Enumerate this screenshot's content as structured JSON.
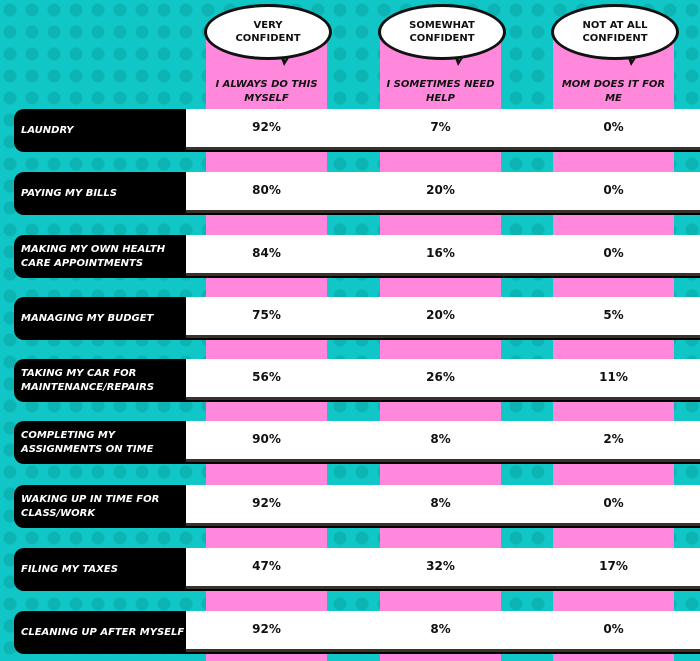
{
  "columns": [
    {
      "bubble": "VERY CONFIDENT",
      "caption": "I ALWAYS DO THIS MYSELF"
    },
    {
      "bubble": "SOMEWHAT CONFIDENT",
      "caption": "I SOMETIMES NEED HELP"
    },
    {
      "bubble": "NOT AT ALL CONFIDENT",
      "caption": "MOM DOES IT FOR ME"
    }
  ],
  "rows": [
    {
      "label": "LAUNDRY",
      "values": [
        "92%",
        "7%",
        "0%"
      ]
    },
    {
      "label": "PAYING MY BILLS",
      "values": [
        "80%",
        "20%",
        "0%"
      ]
    },
    {
      "label": "MAKING MY OWN HEALTH CARE APPOINTMENTS",
      "values": [
        "84%",
        "16%",
        "0%"
      ]
    },
    {
      "label": "MANAGING MY BUDGET",
      "values": [
        "75%",
        "20%",
        "5%"
      ]
    },
    {
      "label": "TAKING MY CAR FOR MAINTENANCE/REPAIRS",
      "values": [
        "56%",
        "26%",
        "11%"
      ]
    },
    {
      "label": "COMPLETING MY ASSIGNMENTS ON TIME",
      "values": [
        "90%",
        "8%",
        "2%"
      ]
    },
    {
      "label": "WAKING UP IN TIME FOR CLASS/WORK",
      "values": [
        "92%",
        "8%",
        "0%"
      ]
    },
    {
      "label": "FILING MY TAXES",
      "values": [
        "47%",
        "32%",
        "17%"
      ]
    },
    {
      "label": "CLEANING UP AFTER MYSELF",
      "values": [
        "92%",
        "8%",
        "0%"
      ]
    }
  ],
  "colors": {
    "background": "#10c6c6",
    "column": "#ff88dd",
    "label_bg": "#000000",
    "cell_bg": "#ffffff"
  }
}
